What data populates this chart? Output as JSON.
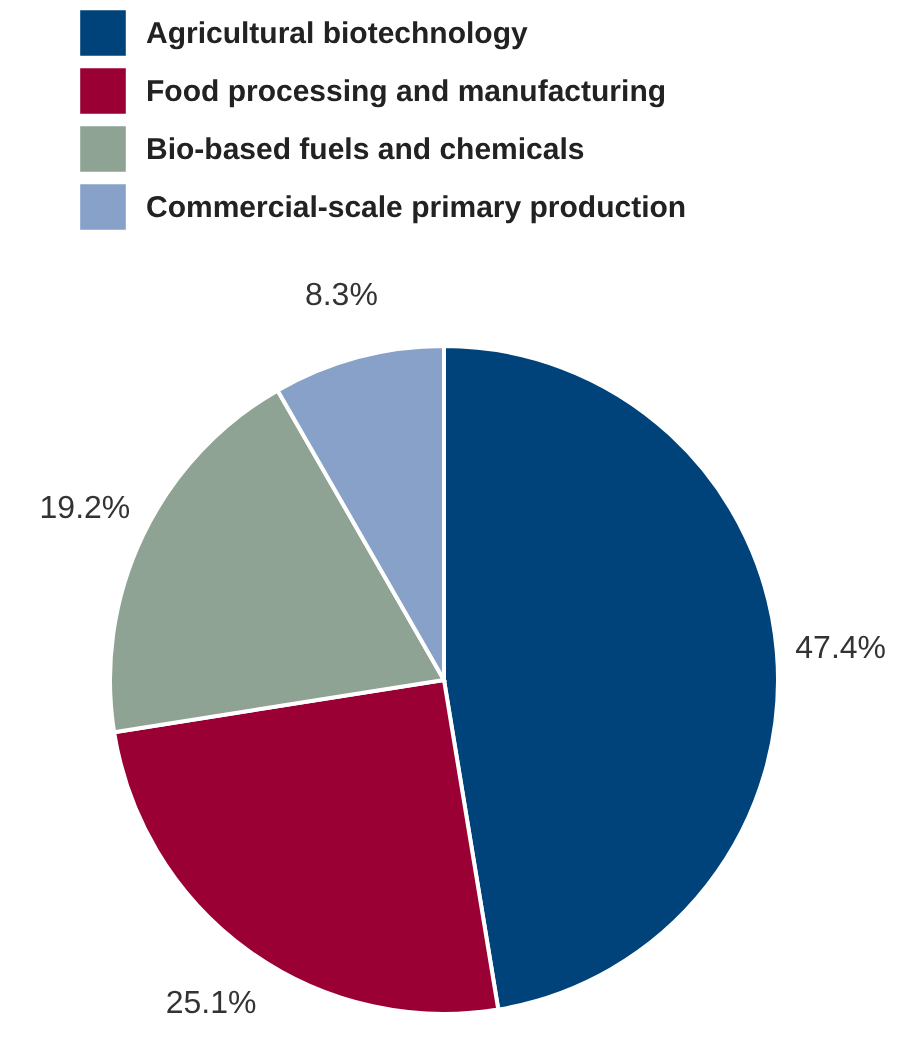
{
  "chart_data": {
    "type": "pie",
    "categories": [
      "Agricultural biotechnology",
      "Food processing and manufacturing",
      "Bio-based fuels and chemicals",
      "Commercial-scale primary production"
    ],
    "values": [
      47.4,
      25.1,
      19.2,
      8.3
    ],
    "value_labels": [
      "47.4%",
      "25.1%",
      "19.2%",
      "8.3%"
    ],
    "colors": [
      "#00427a",
      "#9a0033",
      "#8fa394",
      "#87a1c9"
    ],
    "legend": "top left"
  }
}
